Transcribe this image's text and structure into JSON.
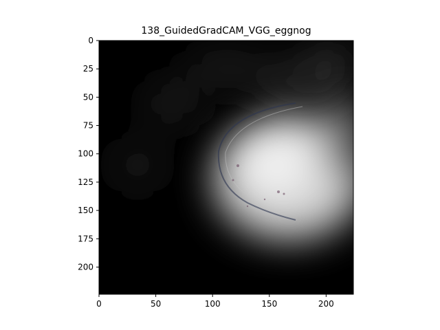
{
  "figure": {
    "title": "138_GuidedGradCAM_VGG_eggnog",
    "x_axis": {
      "ticks": [
        0,
        50,
        100,
        150,
        200
      ],
      "range": [
        0,
        224
      ]
    },
    "y_axis": {
      "ticks": [
        0,
        25,
        50,
        75,
        100,
        125,
        150,
        175,
        200
      ],
      "range": [
        0,
        224
      ]
    },
    "image": {
      "colormap": "grayscale",
      "background_color": "#000000",
      "highlight_color": "#e6e6e6"
    }
  }
}
